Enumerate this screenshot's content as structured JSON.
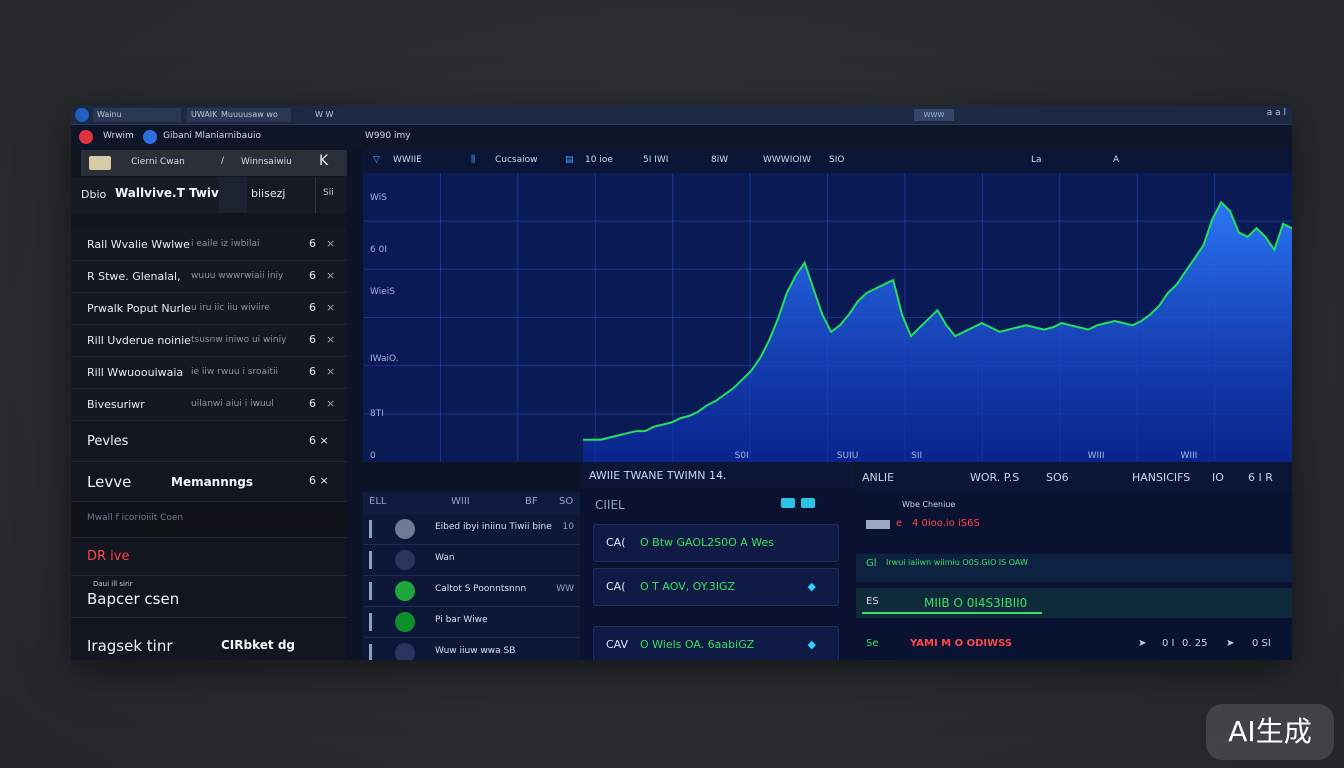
{
  "window": {
    "title_tabs": [
      "Wainu",
      "UWAIK",
      "Muuuusaw wo W",
      "W W"
    ],
    "search_label": "WWW",
    "controls": "a a l"
  },
  "menubar": {
    "brand": "Wrwim",
    "title": "Gibani Mlaniarnibauio",
    "breadcrumb": "W990 imy"
  },
  "sidebar": {
    "top_tab_1": "Cierni Cwan",
    "top_tab_2": "Winnsaiwiu",
    "back_glyph": "K",
    "header_prefix": "Dbio",
    "header_title": "Wallvive.T Twive",
    "header_value": "biisezj",
    "header_small": "Sii",
    "rows": [
      {
        "label": "Rall Wvalie Wwlwe",
        "meta": "i eaile iz iwbilai",
        "num": "6",
        "x": "×"
      },
      {
        "label": "R Stwe. Glenalal,",
        "meta": "wuuu wwwrwiaii iniy",
        "num": "6",
        "x": "×"
      },
      {
        "label": "Prwalk Poput Nurle",
        "meta": "u iru iic  iiu wiviire",
        "num": "6",
        "x": "×"
      },
      {
        "label": "Rill Uvderue noinie",
        "meta": "tsusnw iniwo ui winiy",
        "num": "6",
        "x": "×"
      },
      {
        "label": "Rill Wwuoouiwaia",
        "meta": "ie iiw rwuu i sroaitii",
        "num": "6",
        "x": "×"
      },
      {
        "label": "Bivesuriwr",
        "meta": "uilanwi aiui i iwuul",
        "num": "6",
        "x": "×"
      }
    ],
    "big_rows": [
      {
        "label": "Pevles",
        "right": "6  ×"
      },
      {
        "label": "Levve",
        "mid": "Memannngs",
        "right": "6  ×"
      },
      {
        "label": "Mwall f icorioiiit Coen",
        "right": ""
      },
      {
        "label": "DR ive",
        "right": ""
      },
      {
        "label": "Bapcer csen",
        "small": "Daui ill sirir"
      },
      {
        "label": "Iragsek tinr",
        "mid": "CIRbket dg",
        "right": ""
      }
    ]
  },
  "chart_header": {
    "items": [
      "WWIIE",
      "Cucsaiow",
      "10 ioe",
      "5I IWI",
      "8iW",
      "WWWIOIW",
      "SIO",
      "La",
      "A"
    ]
  },
  "chart_data": {
    "type": "area",
    "ylabels": [
      "WiS",
      "6 0I",
      "WieiS",
      "IWaiO.",
      "8TI",
      "0"
    ],
    "xlabels": [
      "S0I",
      "SUIU",
      "SII",
      "WIII",
      "WIII"
    ],
    "x": [
      0,
      1,
      2,
      3,
      4,
      5,
      6,
      7,
      8,
      9,
      10,
      11,
      12,
      13,
      14,
      15,
      16,
      17,
      18,
      19,
      20,
      21,
      22,
      23,
      24,
      25,
      26,
      27,
      28,
      29,
      30,
      31,
      32,
      33,
      34,
      35,
      36,
      37,
      38,
      39,
      40,
      41,
      42,
      43,
      44,
      45,
      46,
      47,
      48,
      49,
      50,
      51,
      52,
      53,
      54,
      55,
      56,
      57,
      58,
      59,
      60,
      61,
      62,
      63,
      64,
      65,
      66,
      67,
      68,
      69,
      70,
      71,
      72,
      73,
      74,
      75,
      76,
      77,
      78,
      79,
      80
    ],
    "series": [
      {
        "name": "",
        "values": [
          2,
          2,
          2,
          3,
          4,
          5,
          6,
          6,
          8,
          9,
          10,
          12,
          13,
          15,
          18,
          20,
          23,
          26,
          30,
          34,
          40,
          48,
          58,
          70,
          78,
          84,
          72,
          60,
          52,
          55,
          60,
          66,
          70,
          72,
          74,
          76,
          60,
          50,
          54,
          58,
          62,
          55,
          50,
          52,
          54,
          56,
          54,
          52,
          53,
          54,
          55,
          54,
          53,
          54,
          56,
          55,
          54,
          53,
          55,
          56,
          57,
          56,
          55,
          57,
          60,
          64,
          70,
          74,
          80,
          86,
          92,
          104,
          112,
          108,
          98,
          96,
          100,
          96,
          90,
          102,
          100
        ]
      }
    ],
    "ylim": [
      0,
      120
    ],
    "grid": true
  },
  "list_panel": {
    "header": [
      "ELL",
      "WIII",
      "BF",
      "SO"
    ],
    "rows": [
      {
        "text": "Eibed ibyi iniinu Tiwii bine",
        "icon_color": "#6f7a95",
        "value": "10"
      },
      {
        "text": "Wan",
        "icon_color": "#2a3560",
        "value": ""
      },
      {
        "text": "Caltot S Poonntsnnn",
        "icon_color": "#1fa83a",
        "value": "WW"
      },
      {
        "text": "Pi bar Wiwe",
        "icon_color": "#0f8f2a",
        "value": ""
      },
      {
        "text": "Wuw iiuw wwa SB",
        "icon_color": "#2a3560",
        "value": ""
      }
    ]
  },
  "orders": {
    "header": "AWIIE  TWANE    TWIMN  14.",
    "sub": "CIIEL",
    "cards": [
      {
        "a": "CA(",
        "b": "O  Btw  GAOL2S0O A  Wes",
        "b_color": "#38e060",
        "d": ""
      },
      {
        "a": "CA(",
        "b": "O T AOV, OY.3IGZ",
        "b_color": "#38e060",
        "d": "◆"
      },
      {
        "a": "CAV",
        "b": "O Wiels OA. 6aabiGZ",
        "b_color": "#38e060",
        "d": "◆"
      }
    ]
  },
  "feed": {
    "header": [
      "ANLIE",
      "WOR. P.S",
      "SO6",
      "HANSICIFS",
      "IO",
      "6 I R"
    ],
    "rows": [
      {
        "lead": "Wbe Cheniue",
        "text": "",
        "color": "#c9d3ea"
      },
      {
        "lead": "e",
        "text": "4 0ioo.io iS6S",
        "color": "#ff4848"
      },
      {
        "lead": "Gl",
        "text": "Irwui iaiiwn  wiimiu O0S.GIO IS OAW",
        "color": "#38e060"
      },
      {
        "lead": "ES",
        "text": "MIIB O  0I4S3IBII0",
        "color": "#38e060"
      },
      {
        "lead": "Se",
        "text": "YAMI  M  O ODIWSS",
        "color": "#ff4848"
      }
    ],
    "footer_values": [
      "0 I",
      "0. 25",
      "0 SI"
    ]
  },
  "badge": "AI生成",
  "colors": {
    "accent_green": "#38e060",
    "accent_red": "#ff4848",
    "chart_fill": "#1a4fe6",
    "chart_line": "#22e060",
    "sidebar_bg": "#111520",
    "window_bg": "#0c1326"
  }
}
